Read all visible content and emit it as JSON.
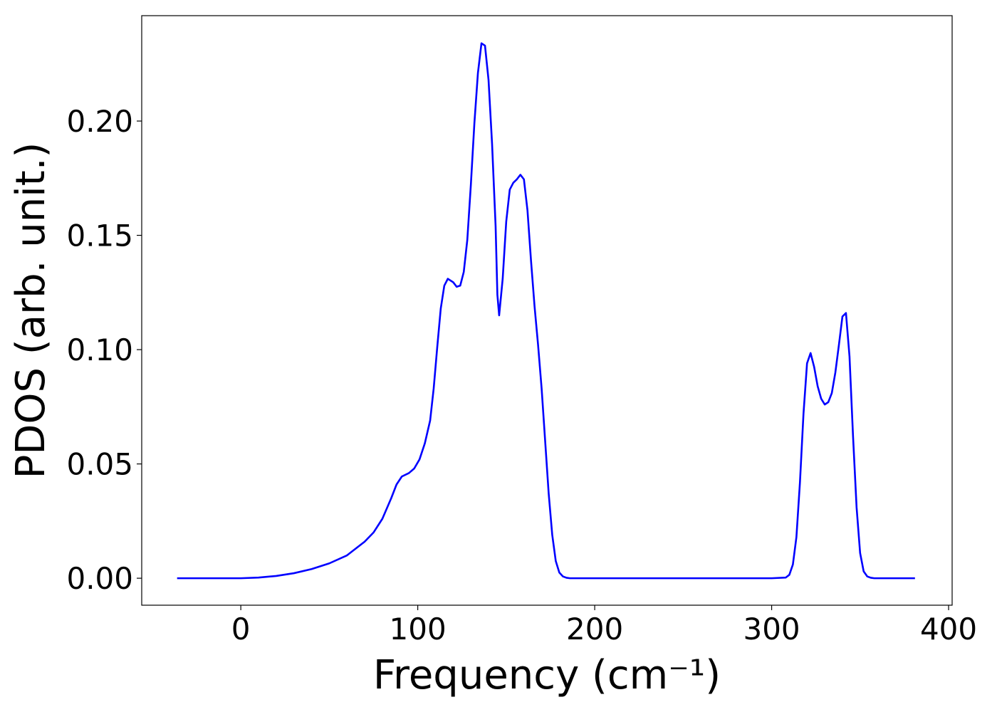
{
  "chart_data": {
    "type": "line",
    "xlabel": "Frequency (cm⁻¹)",
    "ylabel": "PDOS (arb. unit.)",
    "x": [
      -36,
      -20,
      0,
      10,
      20,
      30,
      40,
      50,
      60,
      70,
      75,
      80,
      85,
      88,
      91,
      95,
      98,
      101,
      104,
      107,
      109,
      111,
      113,
      115,
      117,
      120,
      122,
      124,
      126,
      128,
      130,
      132,
      134,
      136,
      138,
      140,
      142,
      144,
      145,
      146,
      148,
      150,
      152,
      154,
      156,
      158,
      160,
      162,
      164,
      166,
      168,
      170,
      172,
      174,
      176,
      178,
      180,
      182,
      184,
      186,
      190,
      200,
      250,
      300,
      308,
      310,
      312,
      314,
      316,
      318,
      320,
      322,
      324,
      326,
      328,
      330,
      332,
      334,
      336,
      338,
      340,
      342,
      344,
      346,
      348,
      350,
      352,
      354,
      356,
      358,
      360,
      381
    ],
    "series": [
      {
        "color": "#0000ff",
        "values": [
          0,
          0,
          0,
          0.0003,
          0.001,
          0.0022,
          0.004,
          0.0065,
          0.01,
          0.016,
          0.02,
          0.026,
          0.035,
          0.041,
          0.0445,
          0.046,
          0.048,
          0.052,
          0.059,
          0.069,
          0.083,
          0.101,
          0.118,
          0.128,
          0.131,
          0.1295,
          0.1275,
          0.128,
          0.134,
          0.148,
          0.172,
          0.199,
          0.221,
          0.234,
          0.233,
          0.218,
          0.19,
          0.154,
          0.124,
          0.115,
          0.131,
          0.156,
          0.17,
          0.173,
          0.1745,
          0.1765,
          0.1745,
          0.161,
          0.139,
          0.119,
          0.102,
          0.083,
          0.06,
          0.037,
          0.019,
          0.0075,
          0.0025,
          0.0008,
          0.0002,
          0,
          0,
          0,
          0,
          0,
          0.0003,
          0.0015,
          0.006,
          0.018,
          0.042,
          0.072,
          0.094,
          0.0985,
          0.0925,
          0.084,
          0.0785,
          0.076,
          0.077,
          0.081,
          0.09,
          0.102,
          0.1145,
          0.116,
          0.097,
          0.062,
          0.031,
          0.011,
          0.003,
          0.0008,
          0.0002,
          0,
          0,
          0
        ]
      }
    ],
    "xlim": [
      -56,
      402
    ],
    "ylim": [
      -0.0118,
      0.2461
    ],
    "xticks": [
      0,
      100,
      200,
      300,
      400
    ],
    "yticks": [
      {
        "value": 0,
        "label": "0.00"
      },
      {
        "value": 0.05,
        "label": "0.05"
      },
      {
        "value": 0.1,
        "label": "0.10"
      },
      {
        "value": 0.15,
        "label": "0.15"
      },
      {
        "value": 0.2,
        "label": "0.20"
      }
    ],
    "grid": false
  }
}
